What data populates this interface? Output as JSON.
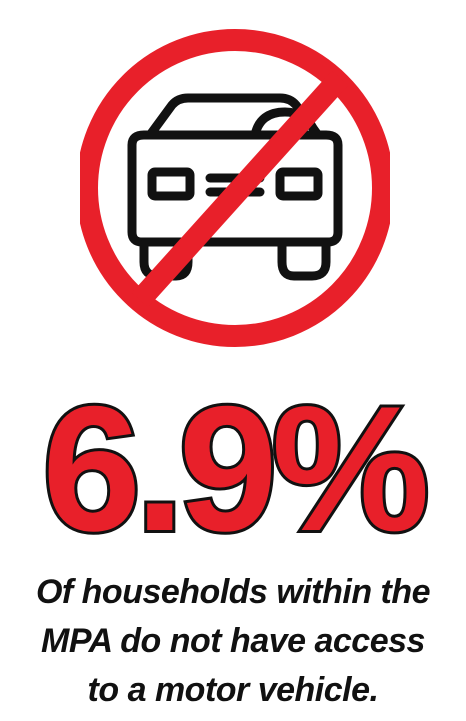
{
  "stat": {
    "value": "6.9%"
  },
  "caption": {
    "lines": [
      "Of households within the",
      "MPA do not have access",
      "to a motor vehicle."
    ]
  },
  "icons": {
    "main": "no-car-icon"
  },
  "colors": {
    "accent_red": "#e8202a",
    "ink": "#111111",
    "background": "#ffffff"
  }
}
